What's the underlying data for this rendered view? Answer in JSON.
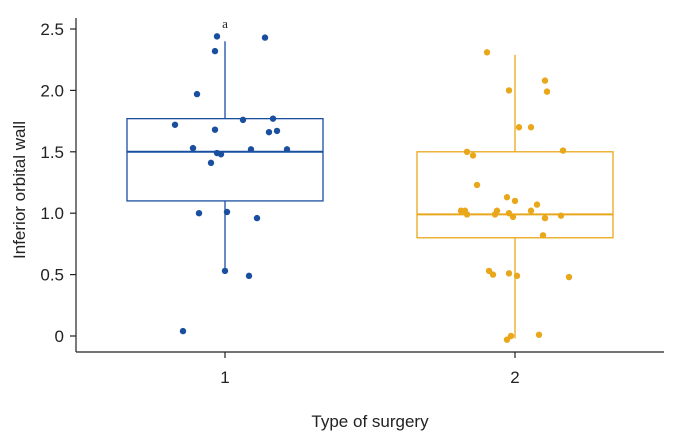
{
  "chart_data": {
    "type": "box",
    "xlabel": "Type of surgery",
    "ylabel": "Inferior orbital wall",
    "ylim": [
      -0.12,
      2.6
    ],
    "y_ticks": [
      "0",
      "0.5",
      "1.0",
      "1.5",
      "2.0",
      "2.5"
    ],
    "y_tick_values": [
      0,
      0.5,
      1.0,
      1.5,
      2.0,
      2.5
    ],
    "categories": [
      "1",
      "2"
    ],
    "annotations": [
      {
        "category": "1",
        "text": "a",
        "y": 2.55
      }
    ],
    "series": [
      {
        "name": "1",
        "color": "#1a4fa0",
        "box": {
          "q1": 1.1,
          "median": 1.5,
          "q3": 1.77,
          "whisker_low": 0.53,
          "whisker_high": 2.4
        },
        "points": [
          {
            "x_offset": -0.04,
            "y": 2.44
          },
          {
            "x_offset": -0.05,
            "y": 2.32
          },
          {
            "x_offset": 0.2,
            "y": 2.43
          },
          {
            "x_offset": -0.14,
            "y": 1.97
          },
          {
            "x_offset": -0.25,
            "y": 1.72
          },
          {
            "x_offset": -0.05,
            "y": 1.68
          },
          {
            "x_offset": 0.09,
            "y": 1.76
          },
          {
            "x_offset": 0.24,
            "y": 1.77
          },
          {
            "x_offset": 0.22,
            "y": 1.66
          },
          {
            "x_offset": 0.26,
            "y": 1.67
          },
          {
            "x_offset": -0.16,
            "y": 1.53
          },
          {
            "x_offset": 0.13,
            "y": 1.52
          },
          {
            "x_offset": 0.31,
            "y": 1.52
          },
          {
            "x_offset": -0.04,
            "y": 1.49
          },
          {
            "x_offset": -0.02,
            "y": 1.48
          },
          {
            "x_offset": -0.07,
            "y": 1.41
          },
          {
            "x_offset": -0.13,
            "y": 1.0
          },
          {
            "x_offset": 0.01,
            "y": 1.01
          },
          {
            "x_offset": 0.16,
            "y": 0.96
          },
          {
            "x_offset": 0.0,
            "y": 0.53
          },
          {
            "x_offset": 0.12,
            "y": 0.49
          },
          {
            "x_offset": -0.21,
            "y": 0.04
          }
        ]
      },
      {
        "name": "2",
        "color": "#e9a71c",
        "box": {
          "q1": 0.8,
          "median": 0.99,
          "q3": 1.5,
          "whisker_low": -0.02,
          "whisker_high": 2.29
        },
        "points": [
          {
            "x_offset": -0.14,
            "y": 2.31
          },
          {
            "x_offset": 0.15,
            "y": 2.08
          },
          {
            "x_offset": -0.03,
            "y": 2.0
          },
          {
            "x_offset": 0.16,
            "y": 1.99
          },
          {
            "x_offset": 0.02,
            "y": 1.7
          },
          {
            "x_offset": 0.08,
            "y": 1.7
          },
          {
            "x_offset": 0.24,
            "y": 1.51
          },
          {
            "x_offset": -0.24,
            "y": 1.5
          },
          {
            "x_offset": -0.21,
            "y": 1.47
          },
          {
            "x_offset": -0.19,
            "y": 1.23
          },
          {
            "x_offset": -0.04,
            "y": 1.13
          },
          {
            "x_offset": 0.0,
            "y": 1.1
          },
          {
            "x_offset": 0.11,
            "y": 1.07
          },
          {
            "x_offset": -0.27,
            "y": 1.02
          },
          {
            "x_offset": -0.25,
            "y": 1.02
          },
          {
            "x_offset": -0.24,
            "y": 0.99
          },
          {
            "x_offset": -0.09,
            "y": 1.02
          },
          {
            "x_offset": -0.1,
            "y": 0.99
          },
          {
            "x_offset": -0.03,
            "y": 1.0
          },
          {
            "x_offset": -0.01,
            "y": 0.97
          },
          {
            "x_offset": 0.08,
            "y": 1.02
          },
          {
            "x_offset": 0.15,
            "y": 0.96
          },
          {
            "x_offset": 0.23,
            "y": 0.98
          },
          {
            "x_offset": 0.14,
            "y": 0.82
          },
          {
            "x_offset": -0.13,
            "y": 0.53
          },
          {
            "x_offset": -0.11,
            "y": 0.5
          },
          {
            "x_offset": -0.03,
            "y": 0.51
          },
          {
            "x_offset": 0.01,
            "y": 0.49
          },
          {
            "x_offset": 0.27,
            "y": 0.48
          },
          {
            "x_offset": 0.12,
            "y": 0.01
          },
          {
            "x_offset": -0.02,
            "y": 0.0
          },
          {
            "x_offset": -0.04,
            "y": -0.03
          }
        ]
      }
    ]
  }
}
